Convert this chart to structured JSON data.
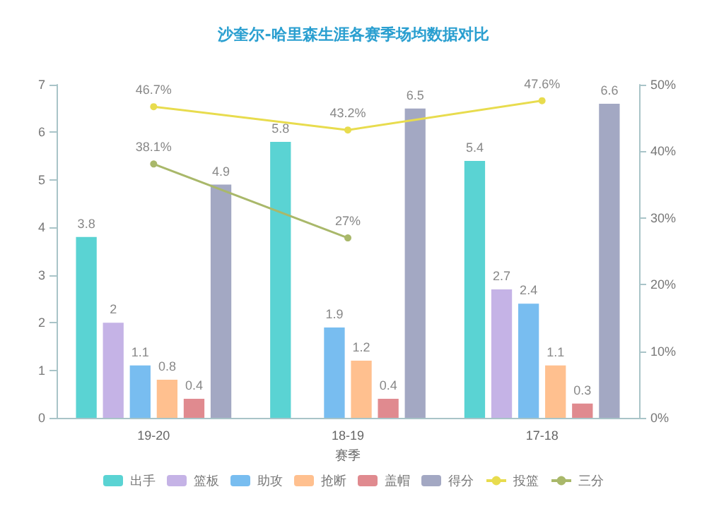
{
  "chart_data": {
    "type": "bar",
    "title": "沙奎尔-哈里森生涯各赛季场均数据对比",
    "xlabel": "赛季",
    "categories": [
      "19-20",
      "18-19",
      "17-18"
    ],
    "series": [
      {
        "name": "出手",
        "color": "#5ad3d3",
        "values": [
          3.8,
          5.8,
          5.4
        ],
        "value_labels": [
          "3.8",
          "5.8",
          "5.4"
        ]
      },
      {
        "name": "篮板",
        "color": "#c5b3e6",
        "values": [
          2,
          null,
          2.7
        ],
        "value_labels": [
          "2",
          null,
          "2.7"
        ]
      },
      {
        "name": "助攻",
        "color": "#78bdf0",
        "values": [
          1.1,
          1.9,
          2.4
        ],
        "value_labels": [
          "1.1",
          "1.9",
          "2.4"
        ]
      },
      {
        "name": "抢断",
        "color": "#ffc08f",
        "values": [
          0.8,
          1.2,
          1.1
        ],
        "value_labels": [
          "0.8",
          "1.2",
          "1.1"
        ]
      },
      {
        "name": "盖帽",
        "color": "#e08a8f",
        "values": [
          0.4,
          0.4,
          0.3
        ],
        "value_labels": [
          "0.4",
          "0.4",
          "0.3"
        ]
      },
      {
        "name": "得分",
        "color": "#a3a8c3",
        "values": [
          4.9,
          6.5,
          6.6
        ],
        "value_labels": [
          "4.9",
          "6.5",
          "6.6"
        ]
      },
      {
        "name": "投篮",
        "type": "line",
        "axis": "y2",
        "color": "#e8dc4e",
        "values": [
          46.7,
          43.2,
          47.6
        ],
        "value_labels": [
          "46.7%",
          "43.2%",
          "47.6%"
        ]
      },
      {
        "name": "三分",
        "type": "line",
        "axis": "y2",
        "color": "#a9b86a",
        "values": [
          38.1,
          27,
          null
        ],
        "value_labels": [
          "38.1%",
          "27%",
          null
        ]
      }
    ],
    "ylim": [
      0,
      7
    ],
    "yticks": [
      0,
      1,
      2,
      3,
      4,
      5,
      6,
      7
    ],
    "y2lim": [
      0,
      50
    ],
    "y2ticks": [
      {
        "value": 0,
        "label": "0%"
      },
      {
        "value": 10,
        "label": "10%"
      },
      {
        "value": 20,
        "label": "20%"
      },
      {
        "value": 30,
        "label": "30%"
      },
      {
        "value": 40,
        "label": "40%"
      },
      {
        "value": 50,
        "label": "50%"
      }
    ],
    "legend": "bottom",
    "grid": false,
    "marker": "circle"
  }
}
